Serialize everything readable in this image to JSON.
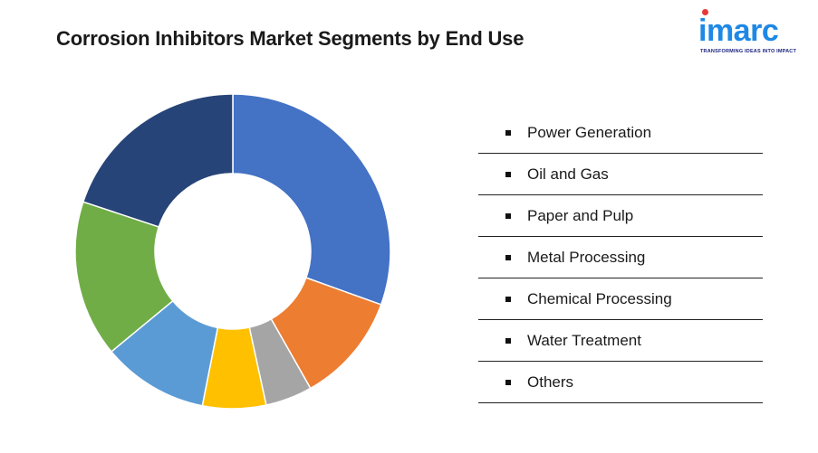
{
  "title": "Corrosion Inhibitors Market Segments by End Use",
  "logo": {
    "word": "imarc",
    "tagline": "TRANSFORMING IDEAS INTO IMPACT",
    "color": "#1e88e5",
    "dot_color": "#e53935"
  },
  "chart_data": {
    "type": "pie",
    "variant": "donut",
    "title": "Corrosion Inhibitors Market Segments by End Use",
    "categories": [
      "Power Generation",
      "Oil and Gas",
      "Paper and Pulp",
      "Metal Processing",
      "Chemical Processing",
      "Water Treatment",
      "Others"
    ],
    "values": [
      30.5,
      11.3,
      4.8,
      6.5,
      10.9,
      16.1,
      19.9
    ],
    "colors": [
      "#4472c4",
      "#ed7d31",
      "#a5a5a5",
      "#ffc000",
      "#5b9bd5",
      "#70ad47",
      "#264478"
    ],
    "legend_position": "right"
  }
}
